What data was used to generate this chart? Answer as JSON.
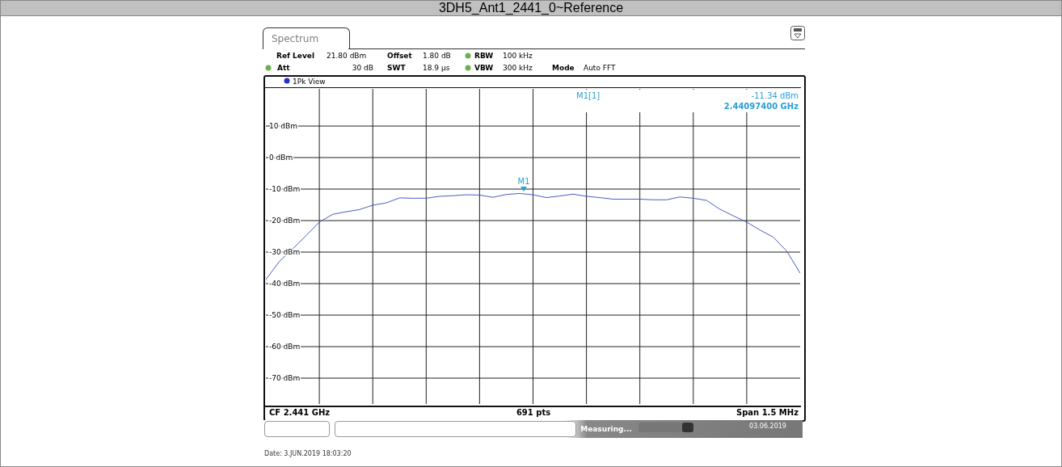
{
  "chart_data": {
    "type": "line",
    "title": "3DH5_Ant1_2441_0~Reference",
    "categories": [
      null,
      null,
      null,
      null,
      null,
      null,
      null,
      null,
      null,
      null,
      null,
      null,
      null,
      null,
      null,
      null,
      null,
      null,
      null,
      null,
      null,
      null,
      null,
      null,
      null,
      null,
      null,
      null,
      null,
      null,
      null,
      null,
      null,
      null,
      null,
      null,
      null,
      null,
      null,
      null,
      null
    ],
    "series": [
      {
        "color": "#4a5cc4",
        "values": [
          -38.7,
          -33.0,
          -29.0,
          -24.8,
          -20.5,
          -18.0,
          -17.2,
          -16.5,
          -15.1,
          -14.4,
          -12.8,
          -12.9,
          -12.9,
          -12.3,
          -12.1,
          -11.8,
          -11.9,
          -12.6,
          -11.7,
          -11.4,
          -11.8,
          -12.7,
          -12.2,
          -11.6,
          -12.3,
          -12.7,
          -13.2,
          -13.2,
          -13.2,
          -13.4,
          -13.4,
          -12.5,
          -12.9,
          -13.6,
          -16.4,
          -18.5,
          -20.5,
          -23.0,
          -25.3,
          -29.7,
          -36.7
        ]
      }
    ],
    "ylim": [
      -78.2,
      21.8
    ],
    "yticks": [
      {
        "value": 10,
        "label": "10 dBm"
      },
      {
        "value": 0,
        "label": "0 dBm"
      },
      {
        "value": -10,
        "label": "-10 dBm"
      },
      {
        "value": -20,
        "label": "-20 dBm"
      },
      {
        "value": -30,
        "label": "-30 dBm"
      },
      {
        "value": -40,
        "label": "-40 dBm"
      },
      {
        "value": -50,
        "label": "-50 dBm"
      },
      {
        "value": -60,
        "label": "-60 dBm"
      },
      {
        "value": -70,
        "label": "-70 dBm"
      }
    ],
    "grid": true,
    "marker": "none",
    "line_style": "solid",
    "annotations": [
      "Spectrum",
      "Ref Level",
      "21.80 dBm",
      "Offset",
      "1.80 dB",
      "RBW",
      "100 kHz",
      "Att",
      "30 dB",
      "SWT",
      "18.9 µs",
      "VBW",
      "300 kHz",
      "Mode",
      "Auto FFT",
      "1Pk View",
      "M1[1]",
      "-11.34 dBm",
      "2.44097400 GHz",
      "CF 2.441 GHz",
      "691 pts",
      "Span 1.5 MHz",
      "Measuring...",
      "03.06.2019",
      "Date: 3.JUN.2019 18:03:20",
      "M1"
    ]
  }
}
